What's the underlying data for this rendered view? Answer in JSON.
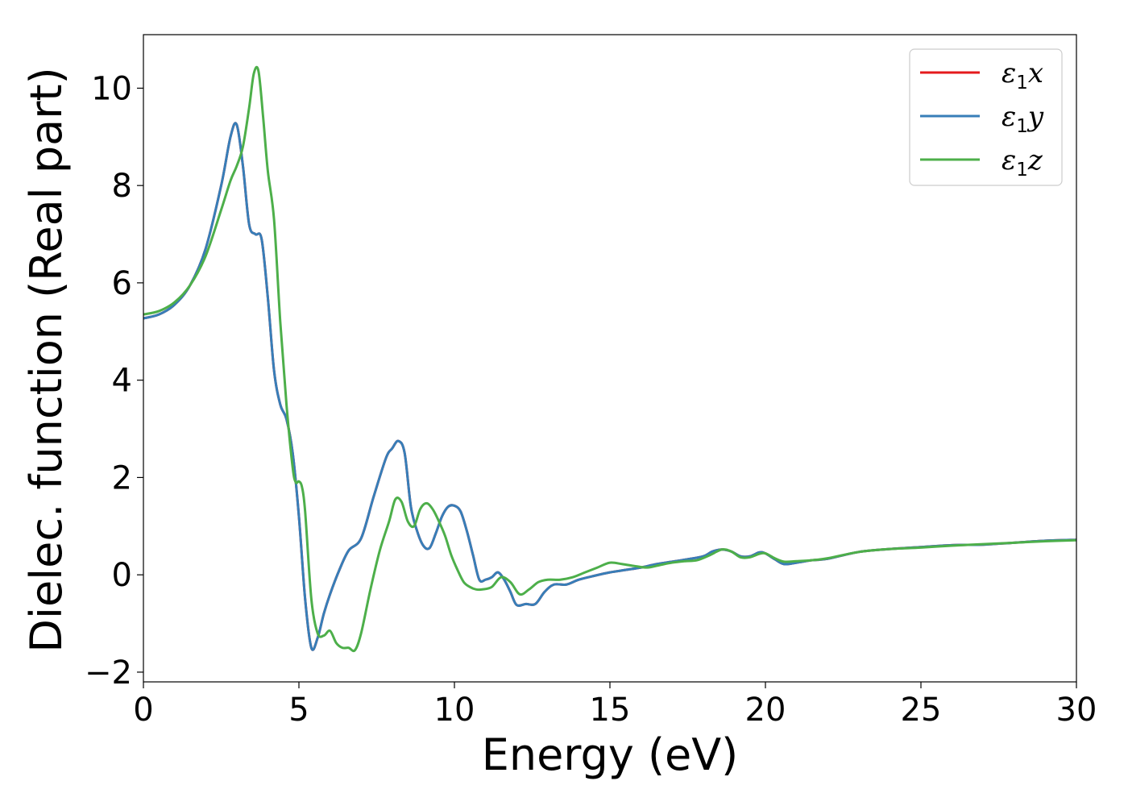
{
  "chart_data": {
    "type": "line",
    "xlabel": "Energy (eV)",
    "ylabel": "Dielec. function (Real part)",
    "xlim": [
      0,
      30
    ],
    "ylim": [
      -2.2,
      11.1
    ],
    "x_ticks": [
      0,
      5,
      10,
      15,
      20,
      25,
      30
    ],
    "x_tick_labels": [
      "0",
      "5",
      "10",
      "15",
      "20",
      "25",
      "30"
    ],
    "y_ticks": [
      -2,
      0,
      2,
      4,
      6,
      8,
      10
    ],
    "y_tick_labels": [
      "−2",
      "0",
      "2",
      "4",
      "6",
      "8",
      "10"
    ],
    "grid": false,
    "legend_position": "top-right",
    "series": [
      {
        "name": "ε1x",
        "legend_symbol": "ε",
        "legend_subscript": "1",
        "legend_suffix": "x",
        "color": "#e41a1c",
        "x": [
          0,
          0.5,
          1,
          1.5,
          2,
          2.5,
          2.8,
          3.0,
          3.2,
          3.4,
          3.6,
          3.8,
          4.0,
          4.2,
          4.4,
          4.6,
          4.8,
          5.0,
          5.2,
          5.4,
          5.6,
          5.8,
          6.0,
          6.3,
          6.6,
          7.0,
          7.4,
          7.8,
          8.0,
          8.2,
          8.4,
          8.6,
          8.8,
          9.0,
          9.2,
          9.4,
          9.6,
          9.8,
          10.0,
          10.2,
          10.4,
          10.6,
          10.8,
          11.0,
          11.2,
          11.4,
          11.6,
          11.8,
          12.0,
          12.3,
          12.6,
          12.9,
          13.2,
          13.6,
          14.0,
          14.5,
          15.0,
          15.5,
          16.0,
          16.5,
          17.0,
          17.5,
          18.0,
          18.3,
          18.6,
          18.9,
          19.2,
          19.5,
          19.8,
          20.0,
          20.3,
          20.6,
          21.0,
          21.5,
          22.0,
          23.0,
          24.0,
          25.0,
          26.0,
          27.0,
          28.0,
          29.0,
          30.0
        ],
        "y": [
          5.27,
          5.35,
          5.55,
          5.95,
          6.7,
          8.0,
          9.0,
          9.25,
          8.4,
          7.2,
          7.0,
          6.9,
          5.7,
          4.2,
          3.5,
          3.2,
          2.5,
          1.2,
          -0.5,
          -1.5,
          -1.3,
          -0.8,
          -0.4,
          0.1,
          0.5,
          0.75,
          1.6,
          2.4,
          2.6,
          2.75,
          2.5,
          1.4,
          0.9,
          0.6,
          0.55,
          0.85,
          1.2,
          1.4,
          1.42,
          1.3,
          0.9,
          0.4,
          -0.1,
          -0.1,
          -0.05,
          0.05,
          -0.1,
          -0.35,
          -0.62,
          -0.6,
          -0.6,
          -0.35,
          -0.2,
          -0.2,
          -0.1,
          -0.02,
          0.05,
          0.1,
          0.15,
          0.22,
          0.27,
          0.32,
          0.38,
          0.48,
          0.52,
          0.48,
          0.38,
          0.38,
          0.46,
          0.44,
          0.32,
          0.22,
          0.25,
          0.3,
          0.33,
          0.47,
          0.53,
          0.57,
          0.61,
          0.62,
          0.66,
          0.7,
          0.72
        ]
      },
      {
        "name": "ε1y",
        "legend_symbol": "ε",
        "legend_subscript": "1",
        "legend_suffix": "y",
        "color": "#377eb8",
        "x": [
          0,
          0.5,
          1,
          1.5,
          2,
          2.5,
          2.8,
          3.0,
          3.2,
          3.4,
          3.6,
          3.8,
          4.0,
          4.2,
          4.4,
          4.6,
          4.8,
          5.0,
          5.2,
          5.4,
          5.6,
          5.8,
          6.0,
          6.3,
          6.6,
          7.0,
          7.4,
          7.8,
          8.0,
          8.2,
          8.4,
          8.6,
          8.8,
          9.0,
          9.2,
          9.4,
          9.6,
          9.8,
          10.0,
          10.2,
          10.4,
          10.6,
          10.8,
          11.0,
          11.2,
          11.4,
          11.6,
          11.8,
          12.0,
          12.3,
          12.6,
          12.9,
          13.2,
          13.6,
          14.0,
          14.5,
          15.0,
          15.5,
          16.0,
          16.5,
          17.0,
          17.5,
          18.0,
          18.3,
          18.6,
          18.9,
          19.2,
          19.5,
          19.8,
          20.0,
          20.3,
          20.6,
          21.0,
          21.5,
          22.0,
          23.0,
          24.0,
          25.0,
          26.0,
          27.0,
          28.0,
          29.0,
          30.0
        ],
        "y": [
          5.27,
          5.35,
          5.55,
          5.95,
          6.7,
          8.0,
          9.0,
          9.25,
          8.4,
          7.2,
          7.0,
          6.9,
          5.7,
          4.2,
          3.5,
          3.2,
          2.5,
          1.2,
          -0.5,
          -1.5,
          -1.3,
          -0.8,
          -0.4,
          0.1,
          0.5,
          0.75,
          1.6,
          2.4,
          2.6,
          2.75,
          2.5,
          1.4,
          0.9,
          0.6,
          0.55,
          0.85,
          1.2,
          1.4,
          1.42,
          1.3,
          0.9,
          0.4,
          -0.1,
          -0.1,
          -0.05,
          0.05,
          -0.1,
          -0.35,
          -0.62,
          -0.6,
          -0.6,
          -0.35,
          -0.2,
          -0.2,
          -0.1,
          -0.02,
          0.05,
          0.1,
          0.15,
          0.22,
          0.27,
          0.32,
          0.38,
          0.48,
          0.52,
          0.48,
          0.38,
          0.38,
          0.46,
          0.44,
          0.32,
          0.22,
          0.25,
          0.3,
          0.33,
          0.47,
          0.53,
          0.57,
          0.61,
          0.62,
          0.66,
          0.7,
          0.72
        ]
      },
      {
        "name": "ε1z",
        "legend_symbol": "ε",
        "legend_subscript": "1",
        "legend_suffix": "z",
        "color": "#4daf4a",
        "x": [
          0,
          0.5,
          1,
          1.5,
          2,
          2.5,
          2.8,
          3.0,
          3.2,
          3.4,
          3.55,
          3.7,
          3.85,
          4.0,
          4.2,
          4.4,
          4.6,
          4.8,
          4.9,
          5.0,
          5.1,
          5.2,
          5.4,
          5.6,
          5.8,
          6.0,
          6.2,
          6.4,
          6.6,
          6.8,
          7.0,
          7.3,
          7.6,
          7.9,
          8.1,
          8.3,
          8.5,
          8.7,
          8.9,
          9.1,
          9.3,
          9.5,
          9.7,
          9.9,
          10.1,
          10.3,
          10.5,
          10.7,
          10.9,
          11.2,
          11.5,
          11.8,
          12.1,
          12.4,
          12.7,
          13.0,
          13.4,
          13.8,
          14.2,
          14.6,
          15.0,
          15.4,
          15.8,
          16.2,
          16.6,
          17.0,
          17.4,
          17.8,
          18.2,
          18.6,
          18.9,
          19.2,
          19.5,
          19.8,
          20.0,
          20.3,
          20.6,
          21.0,
          21.5,
          22.0,
          23.0,
          24.0,
          25.0,
          26.0,
          27.0,
          28.0,
          29.0,
          30.0
        ],
        "y": [
          5.35,
          5.42,
          5.6,
          5.95,
          6.55,
          7.5,
          8.1,
          8.4,
          8.8,
          9.6,
          10.3,
          10.35,
          9.4,
          8.3,
          7.3,
          5.2,
          3.5,
          2.2,
          1.9,
          1.92,
          1.8,
          1.3,
          -0.5,
          -1.2,
          -1.25,
          -1.15,
          -1.4,
          -1.5,
          -1.5,
          -1.55,
          -1.2,
          -0.3,
          0.5,
          1.1,
          1.55,
          1.5,
          1.1,
          1.0,
          1.35,
          1.47,
          1.35,
          1.1,
          0.8,
          0.4,
          0.1,
          -0.15,
          -0.25,
          -0.3,
          -0.3,
          -0.25,
          -0.05,
          -0.15,
          -0.4,
          -0.3,
          -0.15,
          -0.1,
          -0.1,
          -0.05,
          0.05,
          0.15,
          0.25,
          0.22,
          0.18,
          0.15,
          0.2,
          0.25,
          0.28,
          0.3,
          0.4,
          0.52,
          0.48,
          0.36,
          0.36,
          0.43,
          0.44,
          0.34,
          0.27,
          0.28,
          0.3,
          0.34,
          0.47,
          0.53,
          0.56,
          0.6,
          0.63,
          0.66,
          0.69,
          0.71
        ]
      }
    ]
  }
}
